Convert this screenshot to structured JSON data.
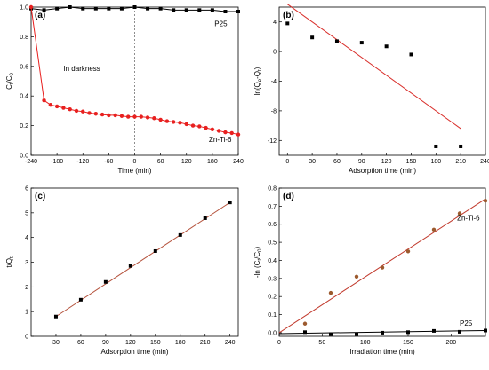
{
  "chart_data": [
    {
      "panel_label": "(a)",
      "type": "line",
      "xlabel": "Time (min)",
      "ylabel_base": "C",
      "ylabel_num_sub": "t",
      "ylabel_den_sub": "0",
      "xlim": [
        -240,
        240
      ],
      "ylim": [
        0.0,
        1.0
      ],
      "xticks": [
        -240,
        -180,
        -120,
        -60,
        0,
        60,
        120,
        180,
        240
      ],
      "yticks": [
        0.0,
        0.2,
        0.4,
        0.6,
        0.8,
        1.0
      ],
      "annotations": [
        {
          "text": "In darkness",
          "x": -165,
          "y": 0.57
        }
      ],
      "series": [
        {
          "name": "P25",
          "color": "#000000",
          "marker": "square",
          "x": [
            -240,
            -210,
            -180,
            -150,
            -120,
            -90,
            -60,
            -30,
            0,
            30,
            60,
            90,
            120,
            150,
            180,
            210,
            240
          ],
          "y": [
            0.99,
            0.98,
            0.99,
            1.0,
            0.99,
            0.99,
            0.99,
            0.99,
            1.0,
            0.99,
            0.99,
            0.98,
            0.98,
            0.98,
            0.98,
            0.97,
            0.97
          ]
        },
        {
          "name": "Zn-Ti-6",
          "color": "#e8201f",
          "marker": "circle",
          "x": [
            -240,
            -210,
            -195,
            -180,
            -165,
            -150,
            -135,
            -120,
            -105,
            -90,
            -75,
            -60,
            -45,
            -30,
            -15,
            0,
            15,
            30,
            45,
            60,
            75,
            90,
            105,
            120,
            135,
            150,
            165,
            180,
            195,
            210,
            225,
            240
          ],
          "y": [
            1.0,
            0.37,
            0.34,
            0.33,
            0.32,
            0.31,
            0.3,
            0.295,
            0.285,
            0.28,
            0.275,
            0.27,
            0.27,
            0.265,
            0.26,
            0.26,
            0.26,
            0.255,
            0.25,
            0.24,
            0.23,
            0.225,
            0.22,
            0.21,
            0.2,
            0.195,
            0.185,
            0.175,
            0.165,
            0.155,
            0.15,
            0.14
          ]
        }
      ]
    },
    {
      "panel_label": "(b)",
      "type": "scatter",
      "xlabel": "Adsorption time (min)",
      "ylabel_main": "ln(Q",
      "ylabel_sub1": "e",
      "ylabel_mid": "-Q",
      "ylabel_sub2": "t",
      "ylabel_end": ")",
      "xlim": [
        -10,
        240
      ],
      "ylim": [
        -14,
        6
      ],
      "xticks": [
        0,
        30,
        60,
        90,
        120,
        150,
        180,
        210,
        240
      ],
      "yticks": [
        -12,
        -8,
        -4,
        0,
        4
      ],
      "series": [
        {
          "name": "",
          "color": "#000000",
          "marker": "square",
          "x": [
            0,
            30,
            60,
            90,
            120,
            150,
            180,
            210
          ],
          "y": [
            3.8,
            1.9,
            1.4,
            1.2,
            0.7,
            -0.4,
            -12.8,
            -12.8
          ]
        }
      ],
      "fit": {
        "color": "#d9302c",
        "x": [
          0,
          210
        ],
        "y": [
          6.4,
          -10.4
        ]
      }
    },
    {
      "panel_label": "(c)",
      "type": "scatter",
      "xlabel": "Adsorption time (min)",
      "ylabel_main": "t/Q",
      "ylabel_sub1": "t",
      "xlim": [
        0,
        250
      ],
      "ylim": [
        0,
        6
      ],
      "xticks": [
        30,
        60,
        90,
        120,
        150,
        180,
        210,
        240
      ],
      "yticks": [
        0,
        1,
        2,
        3,
        4,
        5,
        6
      ],
      "series": [
        {
          "name": "",
          "color": "#000000",
          "marker": "square",
          "x": [
            30,
            60,
            90,
            120,
            150,
            180,
            210,
            240
          ],
          "y": [
            0.8,
            1.48,
            2.2,
            2.85,
            3.45,
            4.1,
            4.78,
            5.42
          ]
        }
      ],
      "fit": {
        "color": "#b5533d",
        "x": [
          30,
          240
        ],
        "y": [
          0.8,
          5.42
        ]
      }
    },
    {
      "panel_label": "(d)",
      "type": "scatter",
      "xlabel": "Irradiation time (min)",
      "ylabel_main": "-ln (C",
      "ylabel_sub1": "t",
      "ylabel_mid": "/C",
      "ylabel_sub2": "0",
      "ylabel_end": ")",
      "xlim": [
        0,
        240
      ],
      "ylim": [
        -0.02,
        0.8
      ],
      "xticks": [
        0,
        50,
        100,
        150,
        200
      ],
      "yticks": [
        0.0,
        0.1,
        0.2,
        0.3,
        0.4,
        0.5,
        0.6,
        0.7,
        0.8
      ],
      "series": [
        {
          "name": "Zn-Ti-6",
          "color": "#9c5a2e",
          "marker": "circle",
          "x": [
            30,
            60,
            90,
            120,
            150,
            180,
            210,
            240
          ],
          "y": [
            0.05,
            0.22,
            0.31,
            0.36,
            0.45,
            0.57,
            0.66,
            0.73
          ],
          "fit": {
            "color": "#c23b2e",
            "x": [
              0,
              240
            ],
            "y": [
              0.0,
              0.74
            ]
          },
          "label_at": {
            "x": 207,
            "y": 0.62
          }
        },
        {
          "name": "P25",
          "color": "#000000",
          "marker": "square",
          "x": [
            30,
            60,
            90,
            120,
            150,
            180,
            210,
            240
          ],
          "y": [
            0.003,
            -0.008,
            -0.008,
            0.0,
            0.003,
            0.01,
            0.005,
            0.012
          ],
          "fit": {
            "color": "#000000",
            "x": [
              0,
              240
            ],
            "y": [
              -0.005,
              0.012
            ]
          },
          "label_at": {
            "x": 210,
            "y": 0.04
          }
        }
      ]
    }
  ]
}
